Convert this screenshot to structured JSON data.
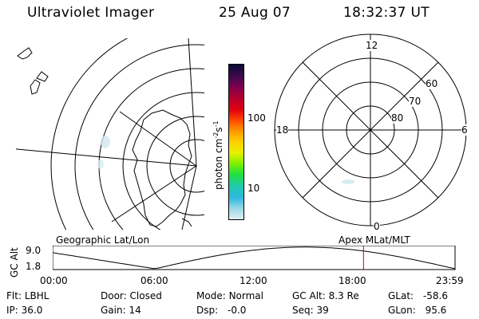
{
  "header": {
    "instrument": "Ultraviolet Imager",
    "date": "25 Aug 07",
    "time": "18:32:37 UT"
  },
  "left_panel": {
    "label": "Geographic Lat/Lon"
  },
  "right_panel": {
    "label": "Apex MLat/MLT",
    "mlt_labels": {
      "top": "12",
      "left": "18",
      "right": "6",
      "bottom": "0"
    },
    "lat_labels": [
      "60",
      "70",
      "80"
    ]
  },
  "colorbar": {
    "unit_main": "photon cm",
    "unit_sup1": "-2",
    "unit_mid": "s",
    "unit_sup2": "-1",
    "tick_labels": [
      "100",
      "10"
    ],
    "colors": [
      "#0a0a38",
      "#3a0a4a",
      "#7a0050",
      "#b00030",
      "#e00010",
      "#ff4800",
      "#ff9800",
      "#ffd000",
      "#e8f000",
      "#80f000",
      "#20e040",
      "#20c8b0",
      "#30b8e0",
      "#9ad8e8",
      "#dfeff2"
    ]
  },
  "altitude_plot": {
    "ylabel": "GC Alt",
    "yticks": [
      "9.0",
      "1.8"
    ],
    "xticks": [
      "00:00",
      "06:00",
      "12:00",
      "18:00",
      "23:59"
    ],
    "current_marker_color": "#d00000",
    "current_time_hours": 18.54
  },
  "status": {
    "filter_label": "Flt:",
    "filter": "LBHL",
    "door_label": "Door:",
    "door": "Closed",
    "mode_label": "Mode:",
    "mode": "Normal",
    "gcalt_label": "GC Alt:",
    "gcalt": "8.3 Re",
    "glat_label": "GLat:",
    "glat": "-58.6",
    "ip_label": "IP:",
    "ip": "36.0",
    "gain_label": "Gain:",
    "gain": "14",
    "dsp_label": "Dsp:",
    "dsp": "-0.0",
    "seq_label": "Seq:",
    "seq": "39",
    "glon_label": "GLon:",
    "glon": "95.6"
  }
}
